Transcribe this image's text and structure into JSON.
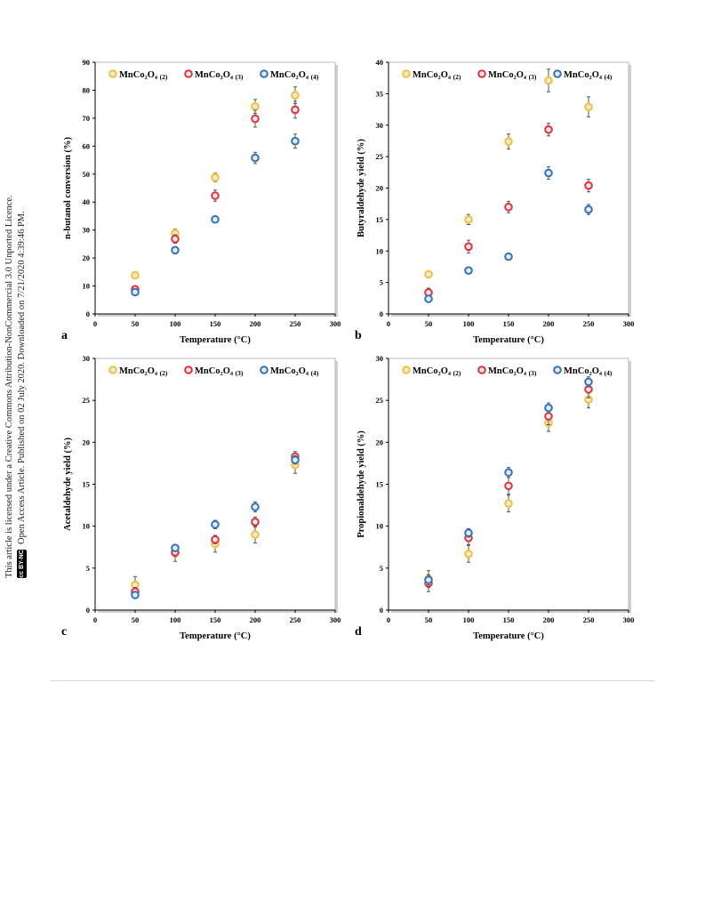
{
  "side_note": {
    "license_line": "This article is licensed under a Creative Commons Attribution-NonCommercial 3.0 Unported Licence.",
    "access_line": "Open Access Article. Published on 02 July 2020. Downloaded on 7/21/2020 4:39:46 PM.",
    "badge": "cc BY-NC"
  },
  "colors": {
    "series_2": "#f2c230",
    "series_3": "#e0323c",
    "series_4": "#2f74bb",
    "point_fill": "#e8e8e8",
    "error_bar": "#555555"
  },
  "chart_data": [
    {
      "panel": "a",
      "type": "scatter",
      "ylabel": "n-butanol conversion (%)",
      "xlabel": "Temperature (°C)",
      "xlim": [
        0,
        300
      ],
      "ylim": [
        0,
        90
      ],
      "xticks": [
        0,
        50,
        100,
        150,
        200,
        250,
        300
      ],
      "yticks": [
        0,
        10,
        20,
        30,
        40,
        50,
        60,
        70,
        80,
        90
      ],
      "legend": "top",
      "series": [
        {
          "label_main": "MnCo2O4",
          "label_sub": "(2)",
          "color_key": "series_2",
          "x": [
            50,
            100,
            150,
            200,
            250
          ],
          "y": [
            13.8,
            28.8,
            48.8,
            74.2,
            78.2
          ],
          "err": [
            1,
            1.5,
            1.5,
            2.5,
            3
          ]
        },
        {
          "label_main": "MnCo2O4",
          "label_sub": "(3)",
          "color_key": "series_3",
          "x": [
            50,
            100,
            150,
            200,
            250
          ],
          "y": [
            8.8,
            26.8,
            42.3,
            69.8,
            73.0
          ],
          "err": [
            1,
            1.5,
            2,
            3,
            3
          ]
        },
        {
          "label_main": "MnCo2O4",
          "label_sub": "(4)",
          "color_key": "series_4",
          "x": [
            50,
            100,
            150,
            200,
            250
          ],
          "y": [
            7.8,
            22.8,
            33.8,
            55.8,
            61.8
          ],
          "err": [
            1,
            1,
            1,
            2,
            2.5
          ]
        }
      ]
    },
    {
      "panel": "b",
      "type": "scatter",
      "ylabel": "Butyraldehyde yield (%)",
      "xlabel": "Temperature (°C)",
      "xlim": [
        0,
        300
      ],
      "ylim": [
        0,
        40
      ],
      "xticks": [
        0,
        50,
        100,
        150,
        200,
        250,
        300
      ],
      "yticks": [
        0,
        5,
        10,
        15,
        20,
        25,
        30,
        35,
        40
      ],
      "legend": "top",
      "series": [
        {
          "label_main": "MnCo2O4",
          "label_sub": "(2)",
          "color_key": "series_2",
          "x": [
            50,
            100,
            150,
            200,
            250
          ],
          "y": [
            6.3,
            15.0,
            27.4,
            37.1,
            32.9
          ],
          "err": [
            0.5,
            0.8,
            1.2,
            1.8,
            1.6
          ]
        },
        {
          "label_main": "MnCo2O4",
          "label_sub": "(3)",
          "color_key": "series_3",
          "x": [
            50,
            100,
            150,
            200,
            250
          ],
          "y": [
            3.4,
            10.7,
            17.0,
            29.3,
            20.4
          ],
          "err": [
            0.7,
            1,
            0.9,
            1,
            1
          ]
        },
        {
          "label_main": "MnCo2O4",
          "label_sub": "(4)",
          "color_key": "series_4",
          "x": [
            50,
            100,
            150,
            200,
            250
          ],
          "y": [
            2.4,
            6.9,
            9.1,
            22.4,
            16.6
          ],
          "err": [
            0.4,
            0.5,
            0.5,
            1,
            0.8
          ]
        }
      ]
    },
    {
      "panel": "c",
      "type": "scatter",
      "ylabel": "Acetaldehyde yield (%)",
      "xlabel": "Temperature (°C)",
      "xlim": [
        0,
        300
      ],
      "ylim": [
        0,
        30
      ],
      "xticks": [
        0,
        50,
        100,
        150,
        200,
        250,
        300
      ],
      "yticks": [
        0,
        5,
        10,
        15,
        20,
        25,
        30
      ],
      "legend": "top",
      "series": [
        {
          "label_main": "MnCo2O4",
          "label_sub": "(2)",
          "color_key": "series_2",
          "x": [
            50,
            100,
            150,
            200,
            250
          ],
          "y": [
            3.0,
            6.8,
            7.9,
            9.0,
            17.3
          ],
          "err": [
            1,
            1,
            1,
            1,
            1
          ]
        },
        {
          "label_main": "MnCo2O4",
          "label_sub": "(3)",
          "color_key": "series_3",
          "x": [
            50,
            100,
            150,
            200,
            250
          ],
          "y": [
            2.2,
            6.9,
            8.4,
            10.5,
            18.3
          ],
          "err": [
            0.5,
            0.5,
            0.5,
            0.6,
            0.6
          ]
        },
        {
          "label_main": "MnCo2O4",
          "label_sub": "(4)",
          "color_key": "series_4",
          "x": [
            50,
            100,
            150,
            200,
            250
          ],
          "y": [
            1.8,
            7.4,
            10.2,
            12.3,
            17.9
          ],
          "err": [
            0.3,
            0.4,
            0.5,
            0.6,
            0.5
          ]
        }
      ]
    },
    {
      "panel": "d",
      "type": "scatter",
      "ylabel": "Propionaldehyde yield (%)",
      "xlabel": "Temperature (°C)",
      "xlim": [
        0,
        300
      ],
      "ylim": [
        0,
        30
      ],
      "xticks": [
        0,
        50,
        100,
        150,
        200,
        250,
        300
      ],
      "yticks": [
        0,
        5,
        10,
        15,
        20,
        25,
        30
      ],
      "legend": "top",
      "series": [
        {
          "label_main": "MnCo2O4",
          "label_sub": "(2)",
          "color_key": "series_2",
          "x": [
            50,
            100,
            150,
            200,
            250
          ],
          "y": [
            3.7,
            6.7,
            12.7,
            22.3,
            25.1
          ],
          "err": [
            1,
            1,
            1,
            1,
            1
          ]
        },
        {
          "label_main": "MnCo2O4",
          "label_sub": "(3)",
          "color_key": "series_3",
          "x": [
            50,
            100,
            150,
            200,
            250
          ],
          "y": [
            3.2,
            8.6,
            14.8,
            23.1,
            26.3
          ],
          "err": [
            1,
            0.8,
            1,
            1,
            1
          ]
        },
        {
          "label_main": "MnCo2O4",
          "label_sub": "(4)",
          "color_key": "series_4",
          "x": [
            50,
            100,
            150,
            200,
            250
          ],
          "y": [
            3.6,
            9.2,
            16.4,
            24.1,
            27.2
          ],
          "err": [
            0.6,
            0.5,
            0.6,
            0.6,
            0.6
          ]
        }
      ]
    }
  ]
}
